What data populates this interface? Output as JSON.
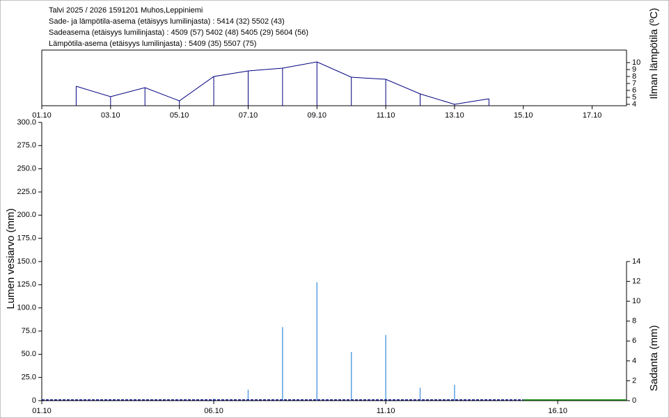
{
  "chart_data": [
    {
      "type": "line",
      "title_lines": [
        "Talvi 2025 / 2026 1591201 Muhos,Leppiniemi",
        "Sade- ja lämpötila-asema (etäisyys lumilinjasta) :  5414 (32) 5502 (43)",
        "Sadeasema (etäisyys lumilinjasta) :  4509 (57) 5402 (48) 5405 (29) 5604 (56)",
        "Lämpötila-asema (etäisyys lumilinjasta) :  5409 (35) 5507 (75)"
      ],
      "y_axis_title": "Ilman lämpötila (ºC)",
      "x": [
        "02.10",
        "03.10",
        "04.10",
        "05.10",
        "06.10",
        "07.10",
        "08.10",
        "09.10",
        "10.10",
        "11.10",
        "12.10",
        "13.10",
        "14.10"
      ],
      "series": [
        {
          "color": "#000080",
          "values": [
            6.6,
            5.1,
            6.4,
            4.5,
            8.0,
            8.8,
            9.2,
            10.1,
            7.9,
            7.6,
            5.5,
            4.0,
            4.8
          ]
        }
      ],
      "stems": true,
      "xlim": [
        "01.10",
        "18.10"
      ],
      "xticks": [
        "01.10",
        "03.10",
        "05.10",
        "07.10",
        "09.10",
        "11.10",
        "13.10",
        "15.10",
        "17.10"
      ],
      "ylim": [
        4,
        11.8
      ],
      "yticks": [
        4,
        5,
        6,
        7,
        8,
        9,
        10
      ]
    },
    {
      "type": "combo",
      "y_axis_title": "Lumen vesiarvo (mm)",
      "y2_axis_title": "Sadanta (mm)",
      "series": [
        {
          "kind": "bar",
          "axis": "y2",
          "color": "#5aa0e0",
          "x": [
            "06.10",
            "07.10",
            "08.10",
            "09.10",
            "10.10",
            "11.10",
            "12.10",
            "13.10"
          ],
          "values": [
            0.2,
            1.1,
            7.4,
            11.9,
            4.9,
            6.6,
            1.3,
            1.6
          ]
        },
        {
          "kind": "line",
          "color": "#000080",
          "dashed": true,
          "x": [
            "01.10",
            "15.10"
          ],
          "values": [
            0,
            0
          ]
        },
        {
          "kind": "line",
          "color": "#008000",
          "dashed": false,
          "x": [
            "15.10",
            "18.10"
          ],
          "values": [
            0,
            0
          ]
        }
      ],
      "xlim": [
        "01.10",
        "18.10"
      ],
      "xticks": [
        "01.10",
        "06.10",
        "11.10",
        "16.10"
      ],
      "ylim": [
        0,
        300
      ],
      "yticks": [
        0,
        {
          "value": 25,
          "label": "25.0"
        },
        {
          "value": 50,
          "label": "50.0"
        },
        {
          "value": 75,
          "label": "75.0"
        },
        {
          "value": 100,
          "label": "100.0"
        },
        {
          "value": 125,
          "label": "125.0"
        },
        {
          "value": 150,
          "label": "150.0"
        },
        {
          "value": 175,
          "label": "175.0"
        },
        {
          "value": 200,
          "label": "200.0"
        },
        {
          "value": 225,
          "label": "225.0"
        },
        {
          "value": 250,
          "label": "250.0"
        },
        {
          "value": 275,
          "label": "275.0"
        },
        {
          "value": 300,
          "label": "300.0"
        }
      ],
      "y2lim": [
        0,
        28
      ],
      "y2ticks": [
        0,
        2,
        4,
        6,
        8,
        10,
        12,
        14
      ]
    }
  ]
}
